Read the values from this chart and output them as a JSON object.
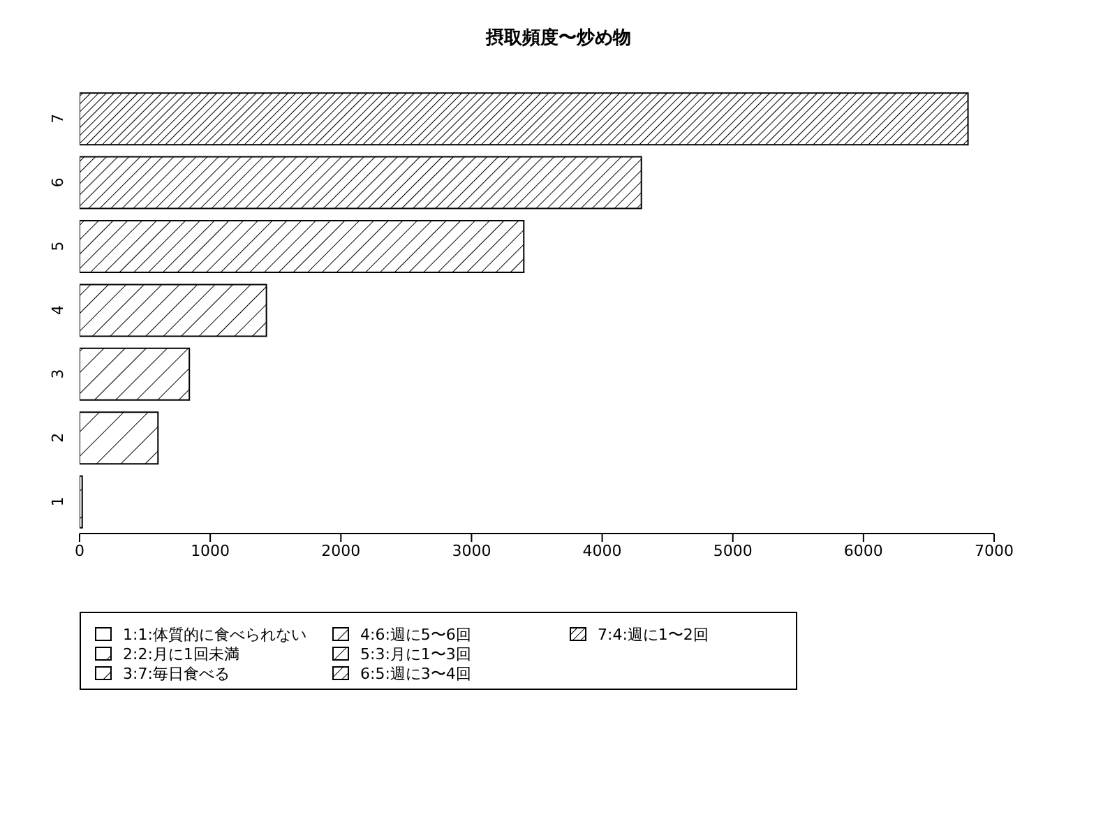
{
  "chart_data": {
    "type": "bar",
    "title": "摂取頻度〜炒め物",
    "orientation": "horizontal",
    "stacked": true,
    "categories": [
      "7",
      "6",
      "5",
      "4",
      "3",
      "2",
      "1"
    ],
    "series": [
      {
        "name": "1:1:体質的に食べられない",
        "color": "#000000",
        "values": [
          null,
          null,
          null,
          null,
          null,
          null,
          20
        ]
      },
      {
        "name": "2:2:月に1回未満",
        "color": "#000000",
        "values": [
          null,
          null,
          null,
          null,
          null,
          600,
          null
        ]
      },
      {
        "name": "3:7:毎日食べる",
        "color": "#000000",
        "values": [
          null,
          null,
          null,
          null,
          840,
          null,
          null
        ]
      },
      {
        "name": "4:6:週に5〜6回",
        "color": "#000000",
        "values": [
          null,
          null,
          null,
          1430,
          null,
          null,
          null
        ]
      },
      {
        "name": "5:3:月に1〜3回",
        "color": "#000000",
        "values": [
          null,
          null,
          3400,
          null,
          null,
          null,
          null
        ]
      },
      {
        "name": "6:5:週に3〜4回",
        "color": "#000000",
        "values": [
          null,
          4300,
          null,
          null,
          null,
          null,
          null
        ]
      },
      {
        "name": "7:4:週に1〜2回",
        "color": "#000000",
        "values": [
          6800,
          null,
          null,
          null,
          null,
          null,
          null
        ]
      }
    ],
    "xlim": [
      0,
      7000
    ],
    "xticks": [
      0,
      1000,
      2000,
      3000,
      4000,
      5000,
      6000,
      7000
    ],
    "grid": false,
    "legend": "bottom"
  }
}
